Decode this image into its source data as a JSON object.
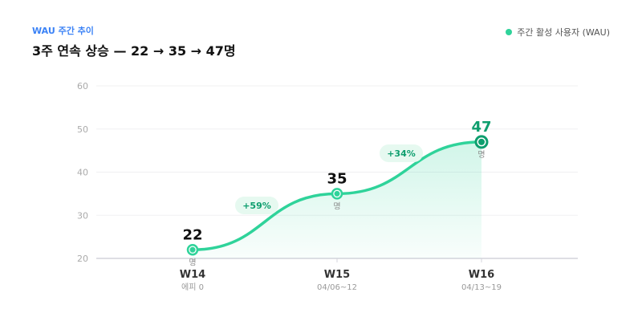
{
  "header": {
    "eyebrow": "WAU 주간 추이",
    "title": "3주 연속 상승 — 22 → 35 → 47명"
  },
  "legend": {
    "label": "주간 활성 사용자 (WAU)"
  },
  "chart_data": {
    "type": "area",
    "categories": [
      "W14",
      "W15",
      "W16"
    ],
    "sublabels": [
      "에피 0",
      "04/06~12",
      "04/13~19"
    ],
    "series": [
      {
        "name": "주간 활성 사용자 (WAU)",
        "values": [
          22,
          35,
          47
        ],
        "unit": "명"
      }
    ],
    "changes": [
      "+59%",
      "+34%"
    ],
    "ylim": [
      20,
      60
    ],
    "yticks": [
      "20",
      "30",
      "40",
      "50",
      "60"
    ],
    "grid": true,
    "legend_position": "top-right",
    "colors": {
      "line": "#2fd39a",
      "highlight": "#0e9e6e",
      "badge_bg": "#e6f9f0",
      "badge_text": "#0e9e6e"
    }
  }
}
